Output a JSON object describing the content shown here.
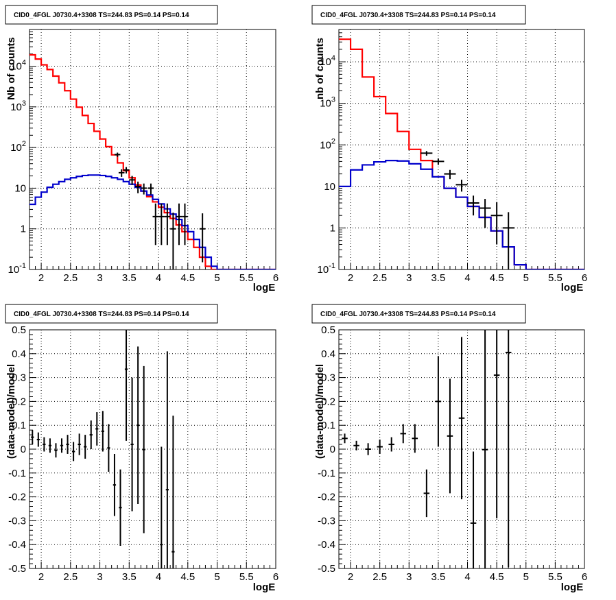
{
  "colors": {
    "frame": "#000000",
    "grid": "#000000",
    "data": "#000000",
    "total_model": "#ff0000",
    "source_model": "#0000cc"
  },
  "chart_data": [
    {
      "type": "line",
      "title": "CID0_4FGL J0730.4+3308 TS=244.83 PS=0.14 PS=0.14",
      "xlabel": "logE",
      "ylabel": "Nb of counts",
      "xlim": [
        1.8,
        6.0
      ],
      "ylim": [
        0.1,
        80000
      ],
      "yscale": "log",
      "grid": true,
      "x_ticks": [
        "2",
        "2.5",
        "3",
        "3.5",
        "4",
        "4.5",
        "5",
        "5.5",
        "6"
      ],
      "y_ticks": [
        "10^-1",
        "1",
        "10",
        "10^2",
        "10^3",
        "10^4"
      ],
      "bin_edges": [
        1.8,
        1.9,
        2.0,
        2.1,
        2.2,
        2.3,
        2.4,
        2.5,
        2.6,
        2.7,
        2.8,
        2.9,
        3.0,
        3.1,
        3.2,
        3.3,
        3.4,
        3.5,
        3.6,
        3.7,
        3.8,
        3.9,
        4.0,
        4.1,
        4.2,
        4.3,
        4.4,
        4.5,
        4.6,
        4.7,
        4.8,
        4.9,
        5.0,
        5.1,
        5.2,
        5.3,
        5.4,
        5.5,
        5.6,
        5.7,
        5.8,
        5.9,
        6.0
      ],
      "series": [
        {
          "role": "total_model",
          "values": [
            19000,
            15000,
            10800,
            8300,
            5700,
            3900,
            2500,
            1550,
            980,
            615,
            390,
            250,
            162,
            105,
            66,
            42,
            27,
            18,
            12,
            8.5,
            6.2,
            4.6,
            3.4,
            2.5,
            1.8,
            1.25,
            0.85,
            0.55,
            0.35,
            0.2,
            0.12,
            0.1,
            0.1,
            0.1,
            0.1,
            0.1,
            0.1,
            0.1,
            0.1,
            0.1,
            0.1,
            0.1
          ]
        },
        {
          "role": "source_model",
          "values": [
            4.0,
            6.0,
            8.0,
            10.5,
            12.5,
            14.5,
            16.5,
            18,
            19.5,
            20.5,
            21,
            21,
            20.5,
            19.5,
            18,
            16.5,
            14.5,
            12.5,
            10.5,
            8.5,
            6.8,
            5.3,
            4.1,
            3.1,
            2.3,
            1.7,
            1.2,
            0.85,
            0.55,
            0.35,
            0.2,
            0.12,
            0.1,
            0.1,
            0.1,
            0.1,
            0.1,
            0.1,
            0.1,
            0.1,
            0.1,
            0.1
          ]
        }
      ],
      "data_points": [
        {
          "x": 3.3,
          "y": 67,
          "yerr": 8
        },
        {
          "x": 3.37,
          "y": 24,
          "yerr": 5
        },
        {
          "x": 3.45,
          "y": 28,
          "yerr": 5
        },
        {
          "x": 3.55,
          "y": 16,
          "yerr": 4
        },
        {
          "x": 3.65,
          "y": 11,
          "yerr": 3.5
        },
        {
          "x": 3.75,
          "y": 10,
          "yerr": 3
        },
        {
          "x": 3.87,
          "y": 10,
          "yerr": 3
        },
        {
          "x": 3.95,
          "y": 2,
          "yerr_lo": 1.6,
          "yerr_hi": 2.2
        },
        {
          "x": 4.05,
          "y": 2,
          "yerr_lo": 1.6,
          "yerr_hi": 2.2
        },
        {
          "x": 4.15,
          "y": 2,
          "yerr_lo": 1.6,
          "yerr_hi": 2.2
        },
        {
          "x": 4.25,
          "y": 1,
          "yerr_lo": 0.95,
          "yerr_hi": 1.5
        },
        {
          "x": 4.35,
          "y": 2,
          "yerr_lo": 1.6,
          "yerr_hi": 2.2
        },
        {
          "x": 4.45,
          "y": 2,
          "yerr_lo": 1.6,
          "yerr_hi": 2.2
        },
        {
          "x": 4.75,
          "y": 1,
          "yerr_lo": 0.85,
          "yerr_hi": 1.4
        }
      ]
    },
    {
      "type": "line",
      "title": "CID0_4FGL J0730.4+3308 TS=244.83 PS=0.14 PS=0.14",
      "xlabel": "logE",
      "ylabel": "nb of counts",
      "xlim": [
        1.8,
        6.0
      ],
      "ylim": [
        0.1,
        60000
      ],
      "yscale": "log",
      "grid": true,
      "x_ticks": [
        "2",
        "2.5",
        "3",
        "3.5",
        "4",
        "4.5",
        "5",
        "5.5",
        "6"
      ],
      "y_ticks": [
        "10^-1",
        "1",
        "10",
        "10^2",
        "10^3",
        "10^4"
      ],
      "bin_edges": [
        1.8,
        2.0,
        2.2,
        2.4,
        2.6,
        2.8,
        3.0,
        3.2,
        3.4,
        3.6,
        3.8,
        4.0,
        4.2,
        4.4,
        4.6,
        4.8,
        5.0,
        5.2,
        5.4,
        5.6,
        5.8,
        6.0
      ],
      "series": [
        {
          "role": "total_model",
          "values": [
            35000,
            20000,
            4300,
            1450,
            570,
            210,
            78,
            42,
            17,
            9,
            5.5,
            3.3,
            1.8,
            0.85,
            0.35,
            0.13,
            0.1,
            0.1,
            0.1,
            0.1,
            0.1
          ]
        },
        {
          "role": "source_model",
          "values": [
            10,
            25,
            33,
            39,
            42,
            41,
            35,
            26,
            17,
            9,
            5.5,
            3.3,
            1.8,
            0.85,
            0.35,
            0.13,
            0.1,
            0.1,
            0.1,
            0.1,
            0.1
          ]
        }
      ],
      "data_points": [
        {
          "x": 3.3,
          "y": 63,
          "yerr": 8
        },
        {
          "x": 3.5,
          "y": 40,
          "yerr": 7
        },
        {
          "x": 3.7,
          "y": 20,
          "yerr": 5
        },
        {
          "x": 3.9,
          "y": 11,
          "yerr": 3.5
        },
        {
          "x": 4.1,
          "y": 4,
          "yerr": 2
        },
        {
          "x": 4.3,
          "y": 3,
          "yerr_lo": 2,
          "yerr_hi": 2
        },
        {
          "x": 4.5,
          "y": 2,
          "yerr_lo": 1.6,
          "yerr_hi": 2.2
        },
        {
          "x": 4.7,
          "y": 1,
          "yerr_lo": 0.9,
          "yerr_hi": 1.4
        }
      ]
    },
    {
      "type": "scatter",
      "title": "CID0_4FGL J0730.4+3308 TS=244.83 PS=0.14 PS=0.14",
      "xlabel": "logE",
      "ylabel": "(data-model)/model",
      "xlim": [
        1.8,
        6.0
      ],
      "ylim": [
        -0.5,
        0.5
      ],
      "grid": true,
      "x_ticks": [
        "2",
        "2.5",
        "3",
        "3.5",
        "4",
        "4.5",
        "5",
        "5.5",
        "6"
      ],
      "y_ticks": [
        "-0.5",
        "-0.4",
        "-0.3",
        "-0.2",
        "-0.1",
        "0",
        "0.1",
        "0.2",
        "0.3",
        "0.4",
        "0.5"
      ],
      "xerr": 0.05,
      "points": [
        {
          "x": 1.85,
          "y": 0.05,
          "yerr": 0.03
        },
        {
          "x": 1.95,
          "y": 0.04,
          "yerr": 0.03
        },
        {
          "x": 2.05,
          "y": 0.02,
          "yerr": 0.03
        },
        {
          "x": 2.15,
          "y": 0.015,
          "yerr": 0.03
        },
        {
          "x": 2.25,
          "y": -0.005,
          "yerr": 0.03
        },
        {
          "x": 2.35,
          "y": 0.015,
          "yerr": 0.03
        },
        {
          "x": 2.45,
          "y": 0.02,
          "yerr": 0.04
        },
        {
          "x": 2.55,
          "y": -0.01,
          "yerr": 0.04
        },
        {
          "x": 2.65,
          "y": 0.02,
          "yerr": 0.045
        },
        {
          "x": 2.75,
          "y": 0.01,
          "yerr": 0.05
        },
        {
          "x": 2.85,
          "y": 0.06,
          "yerr": 0.06
        },
        {
          "x": 2.95,
          "y": 0.085,
          "yerr": 0.07
        },
        {
          "x": 3.05,
          "y": 0.075,
          "yerr": 0.085
        },
        {
          "x": 3.15,
          "y": 0.005,
          "yerr": 0.1
        },
        {
          "x": 3.25,
          "y": -0.15,
          "yerr": 0.13
        },
        {
          "x": 3.35,
          "y": -0.245,
          "yerr": 0.16
        },
        {
          "x": 3.45,
          "y": 0.335,
          "yerr_lo": 0.3,
          "yerr_hi": 0.3
        },
        {
          "x": 3.55,
          "y": 0.02,
          "yerr": 0.28
        },
        {
          "x": 3.65,
          "y": 0.1,
          "yerr": 0.33
        },
        {
          "x": 3.75,
          "y": -0.002,
          "yerr": 0.35
        },
        {
          "x": 4.05,
          "y": -0.4,
          "yerr_lo": 0.3,
          "yerr_hi": 0.41
        },
        {
          "x": 4.15,
          "y": -0.17,
          "yerr": 0.58
        },
        {
          "x": 4.25,
          "y": -0.43,
          "yerr_lo": 0.2,
          "yerr_hi": 0.57
        }
      ]
    },
    {
      "type": "scatter",
      "title": "CID0_4FGL J0730.4+3308 TS=244.83 PS=0.14 PS=0.14",
      "xlabel": "logE",
      "ylabel": "(data-model)/model",
      "xlim": [
        1.8,
        6.0
      ],
      "ylim": [
        -0.5,
        0.5
      ],
      "grid": true,
      "x_ticks": [
        "2",
        "2.5",
        "3",
        "3.5",
        "4",
        "4.5",
        "5",
        "5.5",
        "6"
      ],
      "y_ticks": [
        "-0.5",
        "-0.4",
        "-0.3",
        "-0.2",
        "-0.1",
        "0",
        "0.1",
        "0.2",
        "0.3",
        "0.4",
        "0.5"
      ],
      "xerr": 0.1,
      "points": [
        {
          "x": 1.9,
          "y": 0.045,
          "yerr": 0.02
        },
        {
          "x": 2.1,
          "y": 0.015,
          "yerr": 0.02
        },
        {
          "x": 2.3,
          "y": 0.0,
          "yerr": 0.025
        },
        {
          "x": 2.5,
          "y": 0.01,
          "yerr": 0.03
        },
        {
          "x": 2.7,
          "y": 0.02,
          "yerr": 0.03
        },
        {
          "x": 2.9,
          "y": 0.065,
          "yerr": 0.04
        },
        {
          "x": 3.1,
          "y": 0.045,
          "yerr": 0.06
        },
        {
          "x": 3.3,
          "y": -0.185,
          "yerr": 0.1
        },
        {
          "x": 3.5,
          "y": 0.2,
          "yerr": 0.19
        },
        {
          "x": 3.7,
          "y": 0.055,
          "yerr": 0.24
        },
        {
          "x": 3.9,
          "y": 0.13,
          "yerr": 0.34
        },
        {
          "x": 4.1,
          "y": -0.31,
          "yerr_lo": 0.3,
          "yerr_hi": 0.3
        },
        {
          "x": 4.3,
          "y": -0.002,
          "yerr": 0.6
        },
        {
          "x": 4.5,
          "y": 0.31,
          "yerr": 0.6
        },
        {
          "x": 4.7,
          "y": 0.405,
          "yerr": 0.9
        }
      ]
    }
  ]
}
